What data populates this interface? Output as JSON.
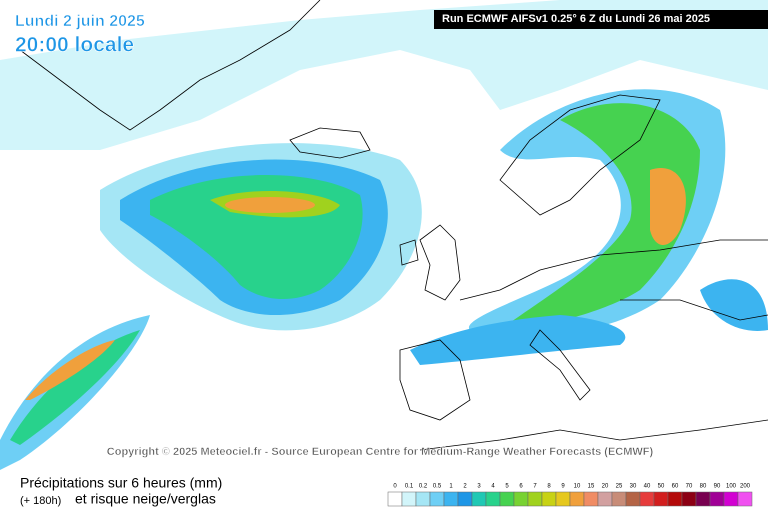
{
  "header": {
    "date": "Lundi 2 juin 2025",
    "time": "20:00 locale",
    "run": "Run ECMWF AIFSv1 0.25° 6 Z du Lundi 26 mai 2025"
  },
  "copyright": "Copyright © 2025 Meteociel.fr - Source European Centre for Medium-Range Weather Forecasts (ECMWF)",
  "footer": {
    "title": "Précipitations sur 6 heures (mm)",
    "lead": "(+ 180h)",
    "subtitle": "et risque neige/verglas"
  },
  "legend": {
    "levels": [
      {
        "label": "0",
        "color": "#ffffff"
      },
      {
        "label": "0.1",
        "color": "#d2f5fa"
      },
      {
        "label": "0.2",
        "color": "#a5e6f5"
      },
      {
        "label": "0.5",
        "color": "#6ecff5"
      },
      {
        "label": "1",
        "color": "#3cb4f0"
      },
      {
        "label": "2",
        "color": "#1e96e6"
      },
      {
        "label": "3",
        "color": "#20c8b4"
      },
      {
        "label": "4",
        "color": "#28d28c"
      },
      {
        "label": "5",
        "color": "#46d250"
      },
      {
        "label": "6",
        "color": "#78d232"
      },
      {
        "label": "7",
        "color": "#a0d21e"
      },
      {
        "label": "8",
        "color": "#c8d214"
      },
      {
        "label": "9",
        "color": "#e6c81e"
      },
      {
        "label": "10",
        "color": "#f0a03c"
      },
      {
        "label": "15",
        "color": "#f08c64"
      },
      {
        "label": "20",
        "color": "#d2a0a0"
      },
      {
        "label": "25",
        "color": "#c88c78"
      },
      {
        "label": "30",
        "color": "#b46446"
      },
      {
        "label": "40",
        "color": "#e63c3c"
      },
      {
        "label": "50",
        "color": "#d21e1e"
      },
      {
        "label": "60",
        "color": "#b40a0a"
      },
      {
        "label": "70",
        "color": "#8c0014"
      },
      {
        "label": "80",
        "color": "#780050"
      },
      {
        "label": "90",
        "color": "#a00096"
      },
      {
        "label": "100",
        "color": "#d200d2"
      },
      {
        "label": "200",
        "color": "#f050f0"
      }
    ]
  }
}
